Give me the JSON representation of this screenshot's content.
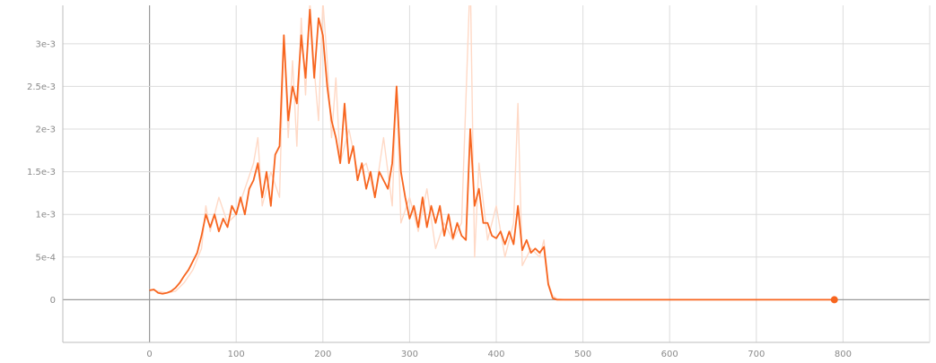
{
  "colors": {
    "smoothed": "#f7651f",
    "raw": "#ffd9c6",
    "grid": "#dcdcdc",
    "axis": "#9a9a9a",
    "tick_text": "#8a8a8a"
  },
  "chart_data": {
    "type": "line",
    "title": "",
    "xlabel": "",
    "ylabel": "",
    "xlim": [
      -100,
      900
    ],
    "ylim": [
      -0.0005,
      0.00345
    ],
    "grid": true,
    "legend": "none",
    "x_ticks": [
      0,
      100,
      200,
      300,
      400,
      500,
      600,
      700,
      800
    ],
    "x_tick_labels": [
      "0",
      "100",
      "200",
      "300",
      "400",
      "500",
      "600",
      "700",
      "800"
    ],
    "y_ticks": [
      0,
      0.0005,
      0.001,
      0.0015,
      0.002,
      0.0025,
      0.003
    ],
    "y_tick_labels": [
      "0",
      "5e-4",
      "1e-3",
      "1.5e-3",
      "2e-3",
      "2.5e-3",
      "3e-3"
    ],
    "series": [
      {
        "role": "raw",
        "x": [
          0,
          10,
          20,
          30,
          40,
          50,
          60,
          65,
          70,
          80,
          90,
          100,
          110,
          120,
          125,
          130,
          140,
          150,
          155,
          160,
          165,
          170,
          175,
          180,
          185,
          190,
          195,
          200,
          205,
          210,
          215,
          220,
          230,
          240,
          250,
          260,
          270,
          280,
          285,
          290,
          300,
          310,
          320,
          330,
          340,
          350,
          360,
          370,
          375,
          380,
          390,
          400,
          410,
          420,
          425,
          430,
          440,
          450,
          455,
          460,
          465,
          470,
          480,
          500,
          600,
          700,
          790
        ],
        "y": [
          0.00012,
          0.0001,
          8e-05,
          0.0001,
          0.0002,
          0.00035,
          0.0006,
          0.0011,
          0.0008,
          0.0012,
          0.0009,
          0.001,
          0.0013,
          0.0016,
          0.0019,
          0.0011,
          0.0015,
          0.0012,
          0.0031,
          0.0019,
          0.0028,
          0.0018,
          0.0033,
          0.0024,
          0.0035,
          0.0027,
          0.0021,
          0.0035,
          0.0028,
          0.0019,
          0.0026,
          0.0016,
          0.002,
          0.0015,
          0.0016,
          0.0012,
          0.0019,
          0.0011,
          0.0025,
          0.0009,
          0.0012,
          0.0008,
          0.0013,
          0.0006,
          0.0009,
          0.0007,
          0.0009,
          0.0038,
          0.0005,
          0.0016,
          0.0007,
          0.0011,
          0.0005,
          0.0009,
          0.0023,
          0.0004,
          0.0006,
          0.0005,
          0.0007,
          0.0002,
          5e-05,
          1e-05,
          0,
          0,
          0,
          0,
          0
        ]
      },
      {
        "role": "smoothed",
        "x": [
          0,
          5,
          10,
          15,
          20,
          25,
          30,
          35,
          40,
          45,
          50,
          55,
          60,
          65,
          70,
          75,
          80,
          85,
          90,
          95,
          100,
          105,
          110,
          115,
          120,
          125,
          130,
          135,
          140,
          145,
          150,
          155,
          160,
          165,
          170,
          175,
          180,
          185,
          190,
          195,
          200,
          205,
          210,
          215,
          220,
          225,
          230,
          235,
          240,
          245,
          250,
          255,
          260,
          265,
          270,
          275,
          280,
          285,
          290,
          295,
          300,
          305,
          310,
          315,
          320,
          325,
          330,
          335,
          340,
          345,
          350,
          355,
          360,
          365,
          370,
          375,
          380,
          385,
          390,
          395,
          400,
          405,
          410,
          415,
          420,
          425,
          430,
          435,
          440,
          445,
          450,
          455,
          460,
          465,
          470,
          480,
          500,
          600,
          700,
          790
        ],
        "y": [
          0.00011,
          0.00012,
          8e-05,
          7e-05,
          8e-05,
          0.0001,
          0.00014,
          0.0002,
          0.00028,
          0.00035,
          0.00045,
          0.00055,
          0.00075,
          0.001,
          0.00085,
          0.001,
          0.0008,
          0.00095,
          0.00085,
          0.0011,
          0.001,
          0.0012,
          0.001,
          0.0013,
          0.0014,
          0.0016,
          0.0012,
          0.0015,
          0.0011,
          0.0017,
          0.0018,
          0.0031,
          0.0021,
          0.0025,
          0.0023,
          0.0031,
          0.0026,
          0.0034,
          0.0026,
          0.0033,
          0.0031,
          0.0025,
          0.0021,
          0.0019,
          0.0016,
          0.0023,
          0.0016,
          0.0018,
          0.0014,
          0.0016,
          0.0013,
          0.0015,
          0.0012,
          0.0015,
          0.0014,
          0.0013,
          0.0016,
          0.0025,
          0.0015,
          0.0012,
          0.00095,
          0.0011,
          0.00085,
          0.0012,
          0.00085,
          0.0011,
          0.0009,
          0.0011,
          0.00075,
          0.001,
          0.00072,
          0.0009,
          0.00075,
          0.0007,
          0.002,
          0.0011,
          0.0013,
          0.0009,
          0.0009,
          0.00075,
          0.00072,
          0.0008,
          0.00065,
          0.0008,
          0.00065,
          0.0011,
          0.00058,
          0.0007,
          0.00055,
          0.0006,
          0.00055,
          0.00062,
          0.00018,
          2e-05,
          0,
          0,
          0,
          0,
          0,
          0
        ]
      }
    ],
    "end_marker": {
      "x": 790,
      "y": 0
    }
  }
}
